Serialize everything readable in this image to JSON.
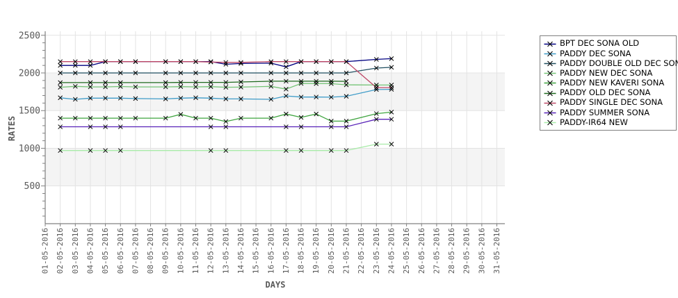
{
  "chart_data": {
    "type": "line",
    "title": "",
    "xlabel": "DAYS",
    "ylabel": "RATES",
    "x_tick_labels": [
      "01-05-2016",
      "02-05-2016",
      "03-05-2016",
      "04-05-2016",
      "05-05-2016",
      "06-05-2016",
      "07-05-2016",
      "08-05-2016",
      "09-05-2016",
      "10-05-2016",
      "11-05-2016",
      "12-05-2016",
      "13-05-2016",
      "14-05-2016",
      "15-05-2016",
      "16-05-2016",
      "17-05-2016",
      "18-05-2016",
      "19-05-2016",
      "20-05-2016",
      "21-05-2016",
      "22-05-2016",
      "23-05-2016",
      "24-05-2016",
      "25-05-2016",
      "26-05-2016",
      "27-05-2016",
      "28-05-2016",
      "29-05-2016",
      "30-05-2016",
      "31-05-2016"
    ],
    "y_ticks": [
      500,
      1000,
      1500,
      2000,
      2500
    ],
    "y_minor_tick_step": 100,
    "ylim": [
      0,
      2550
    ],
    "grid": true,
    "background_bands": [
      [
        500,
        1000
      ],
      [
        1500,
        2000
      ]
    ],
    "band_color": "#f4f4f4",
    "grid_color": "#e3e3e3",
    "axis_color": "#808080",
    "tick_label_color": "#595959",
    "marker": "x",
    "marker_color": "#000000",
    "legend_position": "right",
    "series": [
      {
        "name": "BPT DEC SONA OLD",
        "color": "#000080",
        "points": [
          [
            2,
            2100
          ],
          [
            3,
            2100
          ],
          [
            4,
            2100
          ],
          [
            5,
            2150
          ],
          [
            6,
            2150
          ],
          [
            7,
            2150
          ],
          [
            9,
            2150
          ],
          [
            10,
            2150
          ],
          [
            11,
            2150
          ],
          [
            12,
            2150
          ],
          [
            13,
            2115
          ],
          [
            14,
            2125
          ],
          [
            16,
            2130
          ],
          [
            17,
            2080
          ],
          [
            18,
            2150
          ],
          [
            19,
            2150
          ],
          [
            20,
            2150
          ],
          [
            21,
            2150
          ],
          [
            23,
            2180
          ],
          [
            24,
            2190
          ]
        ]
      },
      {
        "name": "PADDY DEC SONA",
        "color": "#3d9bc8",
        "points": [
          [
            2,
            1670
          ],
          [
            3,
            1650
          ],
          [
            4,
            1665
          ],
          [
            5,
            1665
          ],
          [
            6,
            1665
          ],
          [
            7,
            1660
          ],
          [
            9,
            1655
          ],
          [
            10,
            1665
          ],
          [
            11,
            1670
          ],
          [
            12,
            1665
          ],
          [
            13,
            1655
          ],
          [
            14,
            1655
          ],
          [
            16,
            1650
          ],
          [
            17,
            1695
          ],
          [
            18,
            1680
          ],
          [
            19,
            1680
          ],
          [
            20,
            1678
          ],
          [
            21,
            1690
          ],
          [
            23,
            1780
          ],
          [
            24,
            1782
          ]
        ]
      },
      {
        "name": "PADDY DOUBLE OLD DEC SONA",
        "color": "#1f4e5f",
        "points": [
          [
            2,
            2000
          ],
          [
            3,
            2000
          ],
          [
            4,
            2000
          ],
          [
            5,
            2000
          ],
          [
            6,
            2000
          ],
          [
            7,
            2000
          ],
          [
            9,
            2000
          ],
          [
            10,
            2000
          ],
          [
            11,
            2000
          ],
          [
            12,
            2000
          ],
          [
            13,
            2000
          ],
          [
            14,
            2000
          ],
          [
            16,
            2000
          ],
          [
            17,
            2000
          ],
          [
            18,
            2000
          ],
          [
            19,
            2000
          ],
          [
            20,
            2000
          ],
          [
            21,
            2000
          ],
          [
            23,
            2065
          ],
          [
            24,
            2075
          ]
        ]
      },
      {
        "name": "PADDY NEW DEC SONA",
        "color": "#74c476",
        "points": [
          [
            2,
            1810
          ],
          [
            3,
            1822
          ],
          [
            4,
            1815
          ],
          [
            5,
            1815
          ],
          [
            6,
            1820
          ],
          [
            7,
            1815
          ],
          [
            9,
            1815
          ],
          [
            10,
            1818
          ],
          [
            11,
            1815
          ],
          [
            12,
            1818
          ],
          [
            13,
            1810
          ],
          [
            14,
            1812
          ],
          [
            16,
            1822
          ],
          [
            17,
            1785
          ],
          [
            18,
            1860
          ],
          [
            19,
            1858
          ],
          [
            20,
            1858
          ],
          [
            21,
            1842
          ],
          [
            23,
            1840
          ],
          [
            24,
            1840
          ]
        ]
      },
      {
        "name": "PADDY NEW KAVERI SONA",
        "color": "#3fa43f",
        "points": [
          [
            2,
            1400
          ],
          [
            3,
            1400
          ],
          [
            4,
            1400
          ],
          [
            5,
            1400
          ],
          [
            6,
            1400
          ],
          [
            7,
            1400
          ],
          [
            9,
            1400
          ],
          [
            10,
            1450
          ],
          [
            11,
            1400
          ],
          [
            12,
            1400
          ],
          [
            13,
            1355
          ],
          [
            14,
            1400
          ],
          [
            16,
            1400
          ],
          [
            17,
            1455
          ],
          [
            18,
            1410
          ],
          [
            19,
            1455
          ],
          [
            20,
            1360
          ],
          [
            21,
            1360
          ],
          [
            23,
            1460
          ],
          [
            24,
            1480
          ]
        ]
      },
      {
        "name": "PADDY OLD DEC SONA",
        "color": "#1e691e",
        "points": [
          [
            2,
            1872
          ],
          [
            4,
            1872
          ],
          [
            5,
            1872
          ],
          [
            6,
            1872
          ],
          [
            9,
            1872
          ],
          [
            10,
            1875
          ],
          [
            11,
            1875
          ],
          [
            12,
            1875
          ],
          [
            13,
            1875
          ],
          [
            14,
            1880
          ],
          [
            16,
            1890
          ],
          [
            17,
            1890
          ],
          [
            18,
            1890
          ],
          [
            19,
            1890
          ],
          [
            20,
            1890
          ],
          [
            21,
            1888
          ]
        ]
      },
      {
        "name": "PADDY SINGLE DEC SONA",
        "color": "#be4867",
        "points": [
          [
            2,
            2150
          ],
          [
            3,
            2150
          ],
          [
            4,
            2150
          ],
          [
            5,
            2150
          ],
          [
            6,
            2150
          ],
          [
            7,
            2150
          ],
          [
            9,
            2150
          ],
          [
            10,
            2150
          ],
          [
            11,
            2150
          ],
          [
            12,
            2145
          ],
          [
            13,
            2140
          ],
          [
            14,
            2140
          ],
          [
            16,
            2150
          ],
          [
            17,
            2150
          ],
          [
            18,
            2150
          ],
          [
            19,
            2150
          ],
          [
            20,
            2150
          ],
          [
            21,
            2150
          ],
          [
            23,
            1805
          ],
          [
            24,
            1805
          ]
        ]
      },
      {
        "name": "PADDY SUMMER SONA",
        "color": "#5822b8",
        "points": [
          [
            2,
            1285
          ],
          [
            4,
            1285
          ],
          [
            5,
            1285
          ],
          [
            6,
            1285
          ],
          [
            12,
            1285
          ],
          [
            13,
            1285
          ],
          [
            17,
            1285
          ],
          [
            18,
            1285
          ],
          [
            20,
            1285
          ],
          [
            21,
            1285
          ],
          [
            23,
            1385
          ],
          [
            24,
            1385
          ]
        ]
      },
      {
        "name": "PADDY-IR64 NEW",
        "color": "#a8eba8",
        "points": [
          [
            2,
            970
          ],
          [
            4,
            970
          ],
          [
            5,
            970
          ],
          [
            6,
            970
          ],
          [
            12,
            970
          ],
          [
            13,
            970
          ],
          [
            17,
            970
          ],
          [
            18,
            970
          ],
          [
            20,
            970
          ],
          [
            21,
            970
          ],
          [
            23,
            1055
          ],
          [
            24,
            1055
          ]
        ]
      }
    ]
  }
}
